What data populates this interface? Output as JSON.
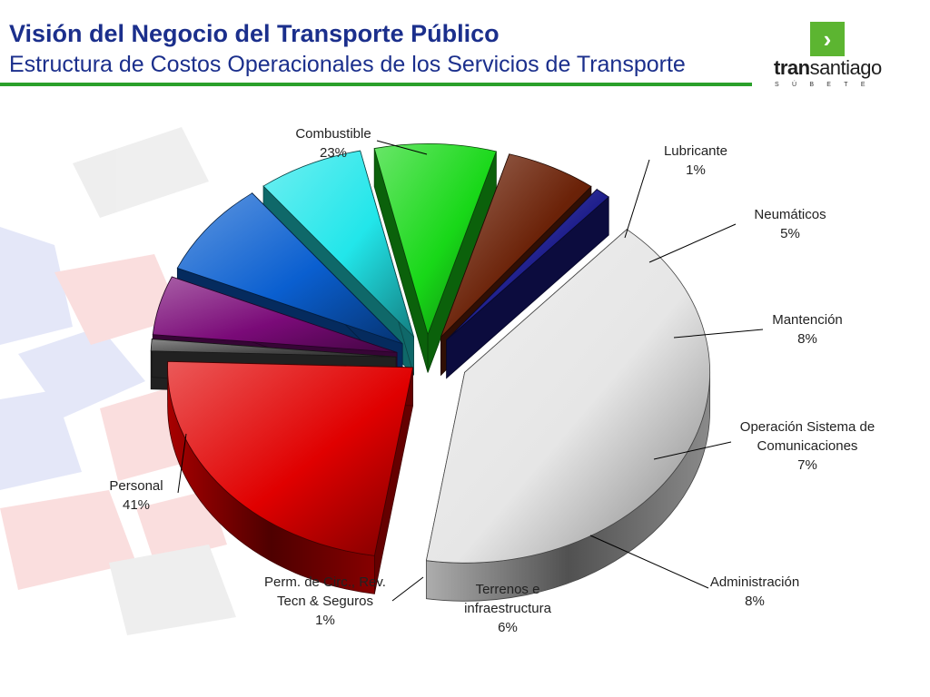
{
  "header": {
    "title": "Visión del Negocio del Transporte Público",
    "subtitle": "Estructura de Costos Operacionales de los Servicios de Transporte"
  },
  "logo": {
    "arrow_glyph": "›",
    "word_bold": "tran",
    "word_rest": "santiago",
    "tagline": "SÚBETE",
    "colors": {
      "square": "#5cb531",
      "rule": "#2aa02a",
      "title": "#1b2f8c"
    }
  },
  "chart_data": {
    "type": "pie",
    "style": "3d-exploded",
    "slices": [
      {
        "label": [
          "Combustible"
        ],
        "value": 23,
        "value_label": "23%",
        "color": "#e00000"
      },
      {
        "label": [
          "Lubricante"
        ],
        "value": 1,
        "value_label": "1%",
        "color": "#4a4a4a"
      },
      {
        "label": [
          "Neumáticos"
        ],
        "value": 5,
        "value_label": "5%",
        "color": "#7a0a78"
      },
      {
        "label": [
          "Mantención"
        ],
        "value": 8,
        "value_label": "8%",
        "color": "#0a5fd0"
      },
      {
        "label": [
          "Operación Sistema de",
          "Comunicaciones"
        ],
        "value": 7,
        "value_label": "7%",
        "color": "#22e6ea"
      },
      {
        "label": [
          "Administración"
        ],
        "value": 8,
        "value_label": "8%",
        "color": "#18d818"
      },
      {
        "label": [
          "Terrenos e",
          "infraestructura"
        ],
        "value": 6,
        "value_label": "6%",
        "color": "#6b2208"
      },
      {
        "label": [
          "Perm. de Circ., Rev.",
          "Tecn & Seguros"
        ],
        "value": 1,
        "value_label": "1%",
        "color": "#1a1a8a"
      },
      {
        "label": [
          "Personal"
        ],
        "value": 41,
        "value_label": "41%",
        "color": "#e6e6e6"
      }
    ]
  }
}
